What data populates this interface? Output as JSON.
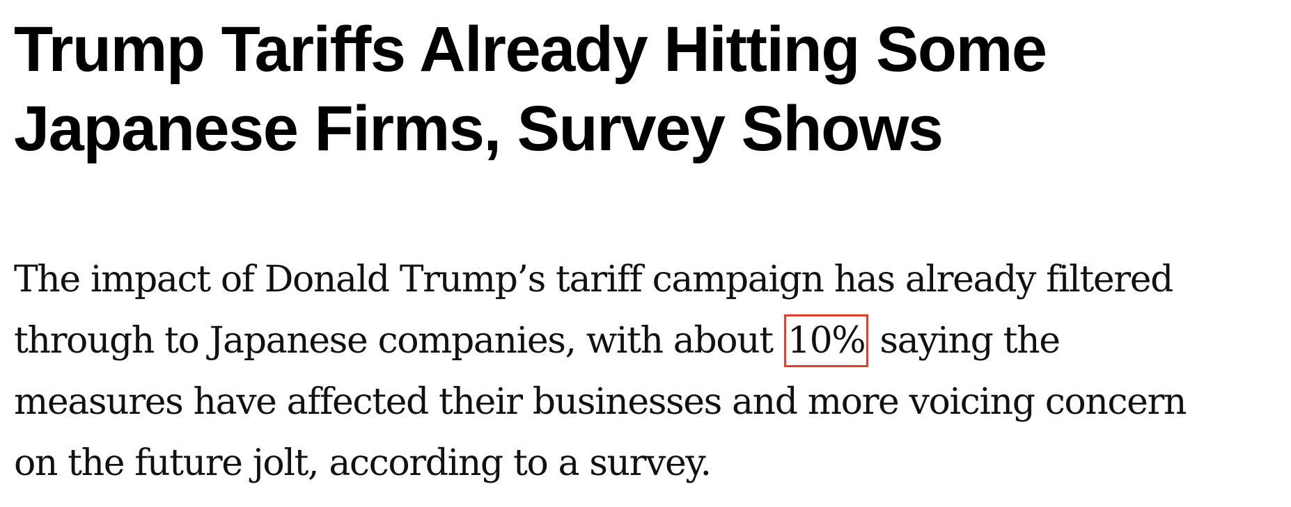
{
  "article": {
    "headline_line1": "Trump Tariffs Already Hitting Some",
    "headline_line2": "Japanese Firms, Survey Shows",
    "dek": {
      "line1": "The impact of Donald Trump’s tariff campaign has already filtered",
      "line2_before": "through to Japanese companies, with about ",
      "highlight": "10%",
      "line2_after": " saying the",
      "line3": "measures have affected their businesses and more voicing concern",
      "line4": "on the future jolt, according to a survey."
    }
  },
  "colors": {
    "highlight_border": "#e0402a",
    "text": "#000000"
  }
}
